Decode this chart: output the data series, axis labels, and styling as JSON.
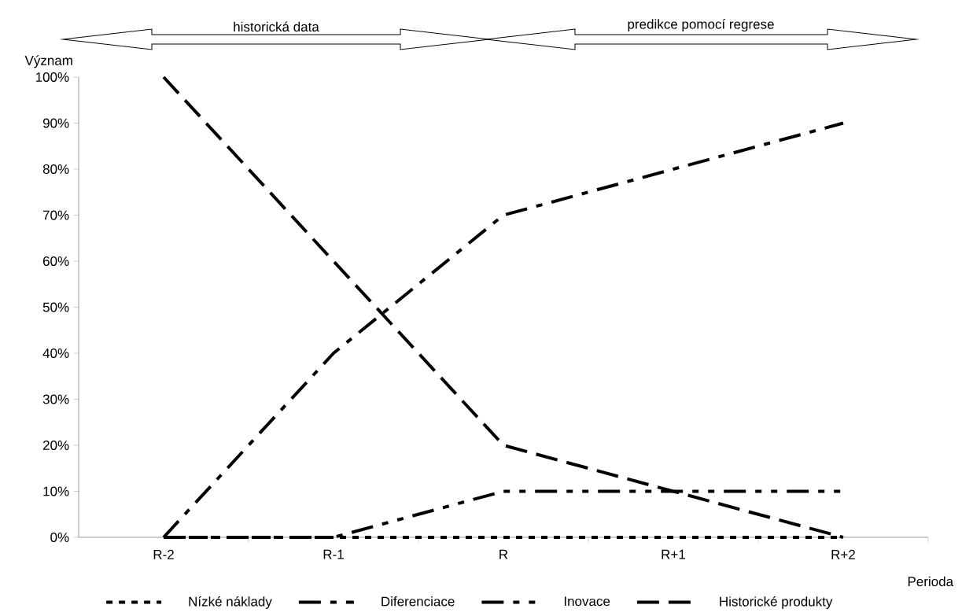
{
  "chart_data": {
    "type": "line",
    "xlabel": "Perioda",
    "ylabel": "Význam",
    "categories": [
      "R-2",
      "R-1",
      "R",
      "R+1",
      "R+2"
    ],
    "series": [
      {
        "name": "Nízké náklady",
        "color": "#000000",
        "line_style": "dotted",
        "values": [
          0,
          0,
          0,
          0,
          0
        ]
      },
      {
        "name": "Diferenciace",
        "color": "#000000",
        "line_style": "dashdot",
        "values": [
          0,
          40,
          70,
          80,
          90
        ]
      },
      {
        "name": "Inovace",
        "color": "#000000",
        "line_style": "dashdotdot",
        "values": [
          0,
          0,
          10,
          10,
          10
        ]
      },
      {
        "name": "Historické produkty",
        "color": "#000000",
        "line_style": "dashed",
        "values": [
          100,
          60,
          20,
          10,
          0
        ]
      }
    ],
    "ylim": [
      0,
      100
    ],
    "yticks": [
      {
        "value": 0,
        "label": "0%"
      },
      {
        "value": 10,
        "label": "10%"
      },
      {
        "value": 20,
        "label": "20%"
      },
      {
        "value": 30,
        "label": "30%"
      },
      {
        "value": 40,
        "label": "40%"
      },
      {
        "value": 50,
        "label": "50%"
      },
      {
        "value": 60,
        "label": "60%"
      },
      {
        "value": 70,
        "label": "70%"
      },
      {
        "value": 80,
        "label": "80%"
      },
      {
        "value": 90,
        "label": "90%"
      },
      {
        "value": 100,
        "label": "100%"
      }
    ],
    "annotations": [
      "historická data",
      "predikce pomocí regrese"
    ],
    "legend": "bottom",
    "grid": false
  }
}
